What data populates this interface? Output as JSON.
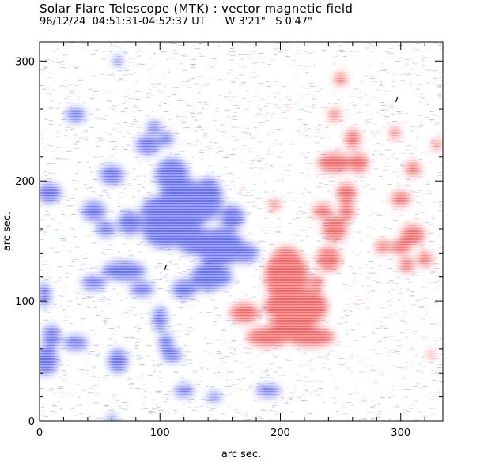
{
  "header": {
    "title": "Solar Flare Telescope (MTK) : vector magnetic field",
    "subtitle": "96/12/24  04:51:31-04:52:37 UT      W 3'21\"   S 0'47\""
  },
  "axes": {
    "xlabel": "arc sec.",
    "ylabel": "arc sec.",
    "xlim": [
      0,
      335
    ],
    "ylim": [
      0,
      316
    ],
    "xticks": [
      "0",
      "100",
      "200",
      "300"
    ],
    "xtick_values": [
      0,
      100,
      200,
      300
    ],
    "yticks": [
      "0",
      "100",
      "200",
      "300"
    ],
    "ytick_values": [
      0,
      100,
      200,
      300
    ]
  },
  "colors": {
    "negative_polarity": "#3f4cf2",
    "positive_polarity": "#f23a3a",
    "noise_blue": "#8a95e8",
    "noise_red": "#f0a0a0"
  }
}
